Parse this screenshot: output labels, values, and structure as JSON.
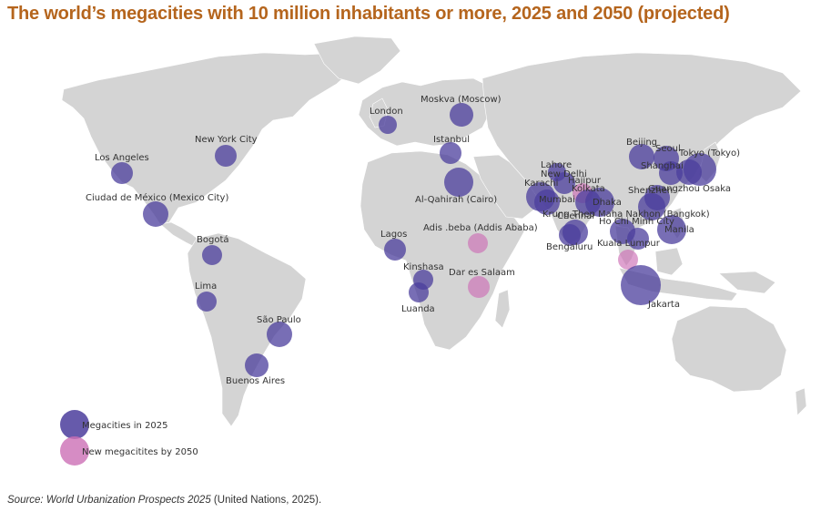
{
  "title": "The world’s megacities with 10 million inhabitants or more, 2025 and 2050 (projected)",
  "legend": {
    "megacities_2025": "Megacities in 2025",
    "new_2050": "New megacitites by 2050"
  },
  "colors": {
    "title": "#b5651d",
    "land": "#d4d4d4",
    "megacity_2025": "#4b3d9c",
    "new_2050": "#cc6fb5"
  },
  "source": {
    "prefix": "Source: World Urbanization Prospects 2025",
    "suffix": " (United Nations, 2025)."
  },
  "cities": [
    {
      "id": "los-angeles",
      "label": "Los Angeles",
      "type": "2025"
    },
    {
      "id": "new-york",
      "label": "New York City",
      "type": "2025"
    },
    {
      "id": "mexico-city",
      "label": "Ciudad de México (Mexico City)",
      "type": "2025"
    },
    {
      "id": "bogota",
      "label": "Bogotá",
      "type": "2025"
    },
    {
      "id": "lima",
      "label": "Lima",
      "type": "2025"
    },
    {
      "id": "sao-paulo",
      "label": "São Paulo",
      "type": "2025"
    },
    {
      "id": "buenos-aires",
      "label": "Buenos Aires",
      "type": "2025"
    },
    {
      "id": "london",
      "label": "London",
      "type": "2025"
    },
    {
      "id": "moscow",
      "label": "Moskva (Moscow)",
      "type": "2025"
    },
    {
      "id": "istanbul",
      "label": "Istanbul",
      "type": "2025"
    },
    {
      "id": "cairo",
      "label": "Al-Qahirah (Cairo)",
      "type": "2025"
    },
    {
      "id": "lagos",
      "label": "Lagos",
      "type": "2025"
    },
    {
      "id": "kinshasa",
      "label": "Kinshasa",
      "type": "2025"
    },
    {
      "id": "luanda",
      "label": "Luanda",
      "type": "2025"
    },
    {
      "id": "addis-ababa",
      "label": "Adis .beba (Addis Ababa)",
      "type": "2050"
    },
    {
      "id": "dar-es-salaam",
      "label": "Dar es Salaam",
      "type": "2050"
    },
    {
      "id": "lahore",
      "label": "Lahore",
      "type": "2025"
    },
    {
      "id": "new-delhi",
      "label": "New Delhi",
      "type": "2025"
    },
    {
      "id": "karachi",
      "label": "Karachi",
      "type": "2025"
    },
    {
      "id": "hajipur",
      "label": "Hajipur",
      "type": "2050"
    },
    {
      "id": "kolkata",
      "label": "Kolkata",
      "type": "2025"
    },
    {
      "id": "mumbai",
      "label": "Mumbai",
      "type": "2025"
    },
    {
      "id": "dhaka",
      "label": "Dhaka",
      "type": "2025"
    },
    {
      "id": "chennai",
      "label": "Chennai",
      "type": "2025"
    },
    {
      "id": "bengaluru",
      "label": "Bengaluru",
      "type": "2025"
    },
    {
      "id": "bangkok",
      "label": "Krung Thep Maha Nakhon (Bangkok)",
      "type": "2025"
    },
    {
      "id": "ho-chi-minh",
      "label": "Ho Chi Minh City",
      "type": "2025"
    },
    {
      "id": "kuala-lumpur",
      "label": "Kuala Lumpur",
      "type": "2050"
    },
    {
      "id": "jakarta",
      "label": "Jakarta",
      "type": "2025"
    },
    {
      "id": "manila",
      "label": "Manila",
      "type": "2025"
    },
    {
      "id": "beijing",
      "label": "Beijing",
      "type": "2025"
    },
    {
      "id": "seoul",
      "label": "Seoul",
      "type": "2025"
    },
    {
      "id": "tokyo",
      "label": "Tokyo (Tokyo)",
      "type": "2025"
    },
    {
      "id": "shanghai",
      "label": "Shanghai",
      "type": "2025"
    },
    {
      "id": "osaka",
      "label": "Osaka",
      "type": "2025"
    },
    {
      "id": "guangzhou",
      "label": "Guangzhou",
      "type": "2025"
    },
    {
      "id": "shenzhen",
      "label": "Shenzhen",
      "type": "2025"
    }
  ]
}
